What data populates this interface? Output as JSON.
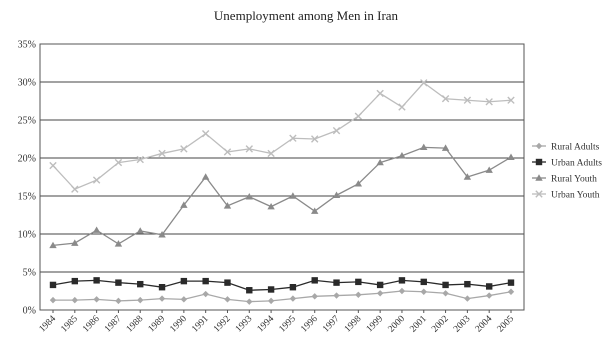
{
  "chart_data": {
    "type": "line",
    "title": "Unemployment among Men in Iran",
    "xlabel": "",
    "ylabel": "",
    "categories": [
      "1984",
      "1985",
      "1986",
      "1987",
      "1988",
      "1989",
      "1990",
      "1991",
      "1992",
      "1993",
      "1994",
      "1995",
      "1996",
      "1997",
      "1998",
      "1999",
      "2000",
      "2001",
      "2002",
      "2003",
      "2004",
      "2005"
    ],
    "ylim": [
      0,
      35
    ],
    "yticks": [
      0,
      5,
      10,
      15,
      20,
      25,
      30,
      35
    ],
    "ytick_labels": [
      "0%",
      "5%",
      "10%",
      "15%",
      "20%",
      "25%",
      "30%",
      "35%"
    ],
    "grid": true,
    "legend_position": "right",
    "series": [
      {
        "name": "Rural Adults",
        "marker": "diamond",
        "color": "#a8a8a8",
        "values": [
          1.3,
          1.3,
          1.4,
          1.2,
          1.3,
          1.5,
          1.4,
          2.1,
          1.4,
          1.1,
          1.2,
          1.5,
          1.8,
          1.9,
          2.0,
          2.2,
          2.5,
          2.4,
          2.2,
          1.5,
          1.9,
          2.4
        ]
      },
      {
        "name": "Urban Adults",
        "marker": "square",
        "color": "#2a2a2a",
        "values": [
          3.3,
          3.8,
          3.9,
          3.6,
          3.4,
          3.0,
          3.8,
          3.8,
          3.6,
          2.6,
          2.7,
          3.0,
          3.9,
          3.6,
          3.7,
          3.3,
          3.9,
          3.7,
          3.3,
          3.4,
          3.1,
          3.6
        ]
      },
      {
        "name": "Rural Youth",
        "marker": "triangle",
        "color": "#8a8a8a",
        "values": [
          8.5,
          8.8,
          10.5,
          8.7,
          10.4,
          9.9,
          13.8,
          17.5,
          13.7,
          14.9,
          13.6,
          15.0,
          13.0,
          15.1,
          16.6,
          19.4,
          20.3,
          21.4,
          21.3,
          17.5,
          18.4,
          20.1
        ]
      },
      {
        "name": "Urban Youth",
        "marker": "x",
        "color": "#bdbdbd",
        "values": [
          19.0,
          15.9,
          17.1,
          19.4,
          19.8,
          20.6,
          21.2,
          23.2,
          20.8,
          21.2,
          20.6,
          22.6,
          22.5,
          23.6,
          25.5,
          28.5,
          26.7,
          29.9,
          27.8,
          27.6,
          27.4,
          27.6
        ]
      }
    ]
  }
}
